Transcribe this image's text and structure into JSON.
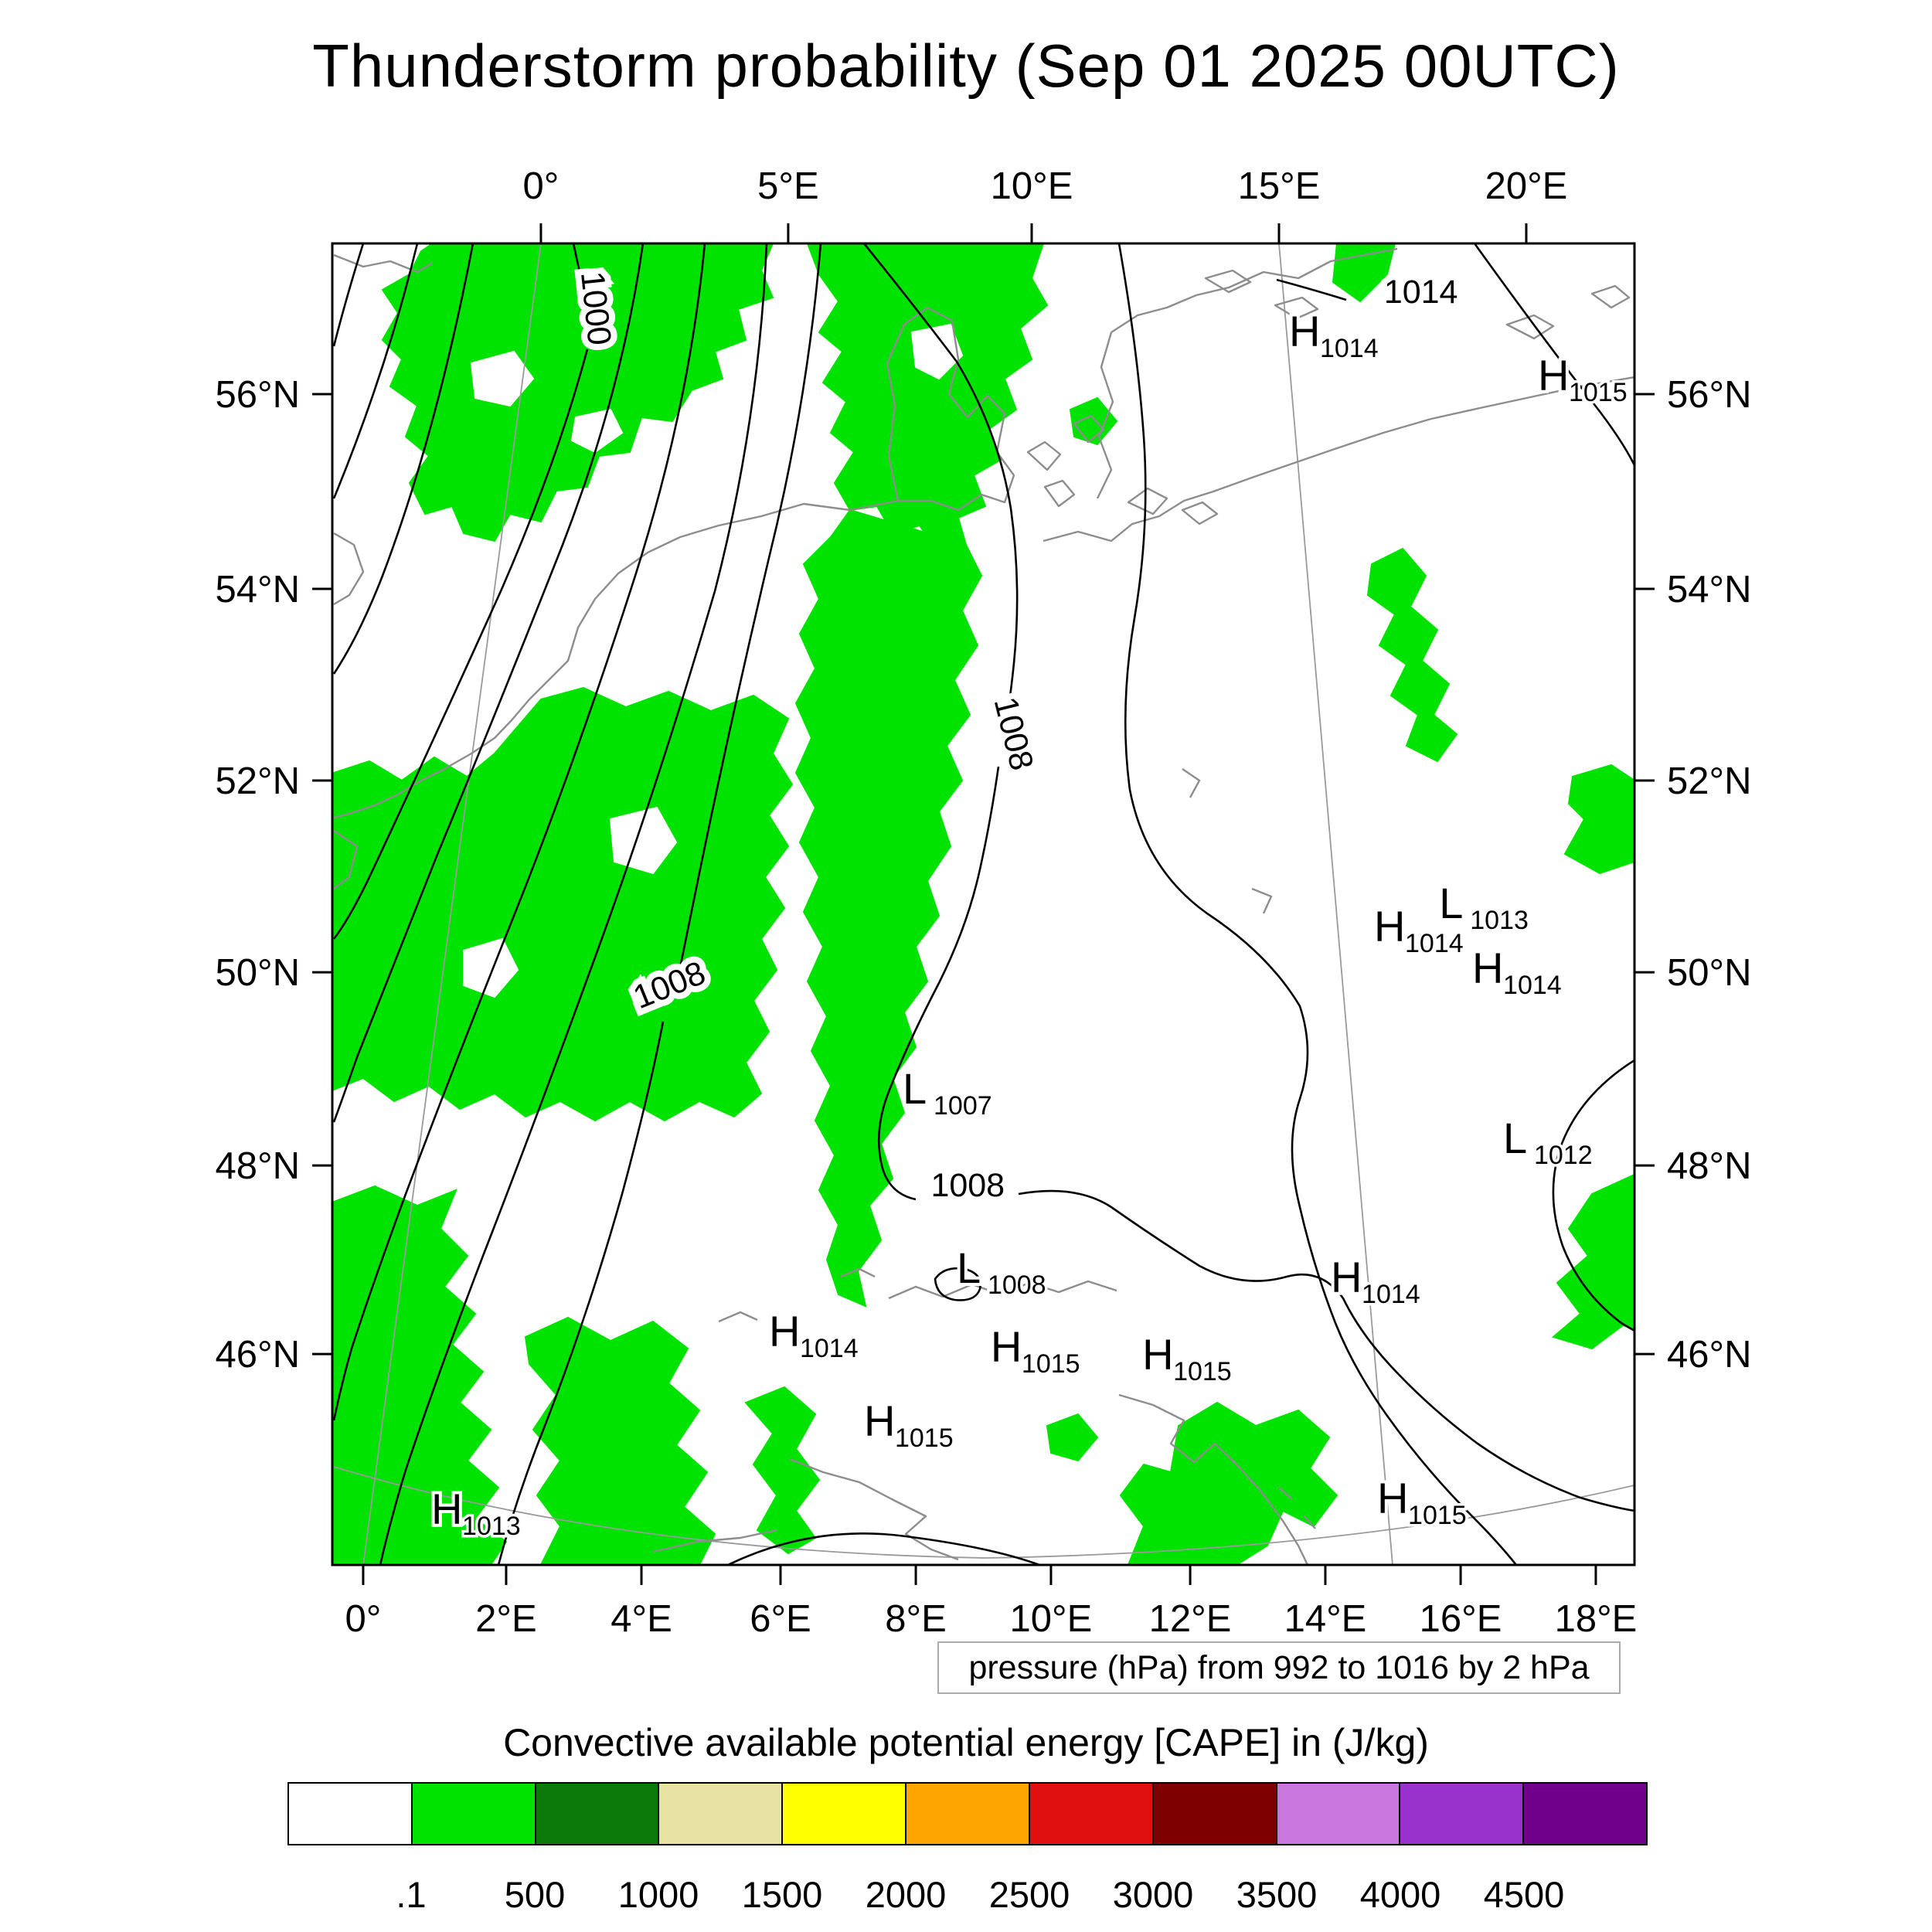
{
  "title": "Thunderstorm probability (Sep 01 2025 00UTC)",
  "map": {
    "axes": {
      "top": [
        {
          "label": "0°",
          "f": 0.1602
        },
        {
          "label": "5°E",
          "f": 0.3501
        },
        {
          "label": "10°E",
          "f": 0.5371
        },
        {
          "label": "15°E",
          "f": 0.727
        },
        {
          "label": "20°E",
          "f": 0.9169
        }
      ],
      "bottom": [
        {
          "label": "0°",
          "f": 0.0237
        },
        {
          "label": "2°E",
          "f": 0.1335
        },
        {
          "label": "4°E",
          "f": 0.2374
        },
        {
          "label": "6°E",
          "f": 0.3442
        },
        {
          "label": "8°E",
          "f": 0.4481
        },
        {
          "label": "10°E",
          "f": 0.5519
        },
        {
          "label": "12°E",
          "f": 0.6588
        },
        {
          "label": "14°E",
          "f": 0.7626
        },
        {
          "label": "16°E",
          "f": 0.8665
        },
        {
          "label": "18°E",
          "f": 0.9703
        }
      ],
      "left": [
        {
          "label": "56°N",
          "f": 0.114
        },
        {
          "label": "54°N",
          "f": 0.2614
        },
        {
          "label": "52°N",
          "f": 0.4064
        },
        {
          "label": "50°N",
          "f": 0.5515
        },
        {
          "label": "48°N",
          "f": 0.6977
        },
        {
          "label": "46°N",
          "f": 0.8404
        }
      ],
      "right": [
        {
          "label": "56°N",
          "f": 0.114
        },
        {
          "label": "54°N",
          "f": 0.2614
        },
        {
          "label": "52°N",
          "f": 0.4064
        },
        {
          "label": "50°N",
          "f": 0.5515
        },
        {
          "label": "48°N",
          "f": 0.6977
        },
        {
          "label": "46°N",
          "f": 0.8404
        }
      ]
    },
    "pressure_centers": [
      {
        "letter": "H",
        "value": "1014",
        "fx": 0.7347,
        "fy": 0.0778
      },
      {
        "letter": "H",
        "value": "1015",
        "fx": 0.9258,
        "fy": 0.1111
      },
      {
        "letter": "H",
        "value": "1014",
        "fx": 0.8,
        "fy": 0.528
      },
      {
        "letter": "L",
        "value": "1013",
        "fx": 0.85,
        "fy": 0.5105
      },
      {
        "letter": "H",
        "value": "1014",
        "fx": 0.8754,
        "fy": 0.5596
      },
      {
        "letter": "L",
        "value": "1007",
        "fx": 0.438,
        "fy": 0.6509
      },
      {
        "letter": "L",
        "value": "1008",
        "fx": 0.4795,
        "fy": 0.7866
      },
      {
        "letter": "H",
        "value": "1014",
        "fx": 0.3353,
        "fy": 0.8345
      },
      {
        "letter": "H",
        "value": "1015",
        "fx": 0.5056,
        "fy": 0.8462
      },
      {
        "letter": "H",
        "value": "1015",
        "fx": 0.622,
        "fy": 0.852
      },
      {
        "letter": "H",
        "value": "1015",
        "fx": 0.4083,
        "fy": 0.9023
      },
      {
        "letter": "H",
        "value": "1014",
        "fx": 0.7668,
        "fy": 0.7936
      },
      {
        "letter": "L",
        "value": "1012",
        "fx": 0.8991,
        "fy": 0.6883
      },
      {
        "letter": "H",
        "value": "1015",
        "fx": 0.8024,
        "fy": 0.9608
      },
      {
        "letter": "H",
        "value": "1013",
        "fx": 0.076,
        "fy": 0.969
      }
    ],
    "contour_labels": [
      {
        "text": "1000",
        "fx": 0.194,
        "fy": 0.05,
        "rot": 84
      },
      {
        "text": "1008",
        "fx": 0.515,
        "fy": 0.373,
        "rot": 76
      },
      {
        "text": "1008",
        "fx": 0.262,
        "fy": 0.569,
        "rot": -22
      },
      {
        "text": "1008",
        "fx": 0.488,
        "fy": 0.721,
        "rot": 0
      },
      {
        "text": "1014",
        "fx": 0.836,
        "fy": 0.045,
        "rot": 0
      }
    ],
    "isobar_values_shown": [
      "1000",
      "1008",
      "1014"
    ]
  },
  "pressure_note": "pressure (hPa) from 992 to 1016 by 2 hPa",
  "cape": {
    "title": "Convective available potential energy [CAPE] in (J/kg)",
    "colors": [
      "#ffffff",
      "#00e200",
      "#0b7a0b",
      "#e8e3a3",
      "#ffff00",
      "#ffa500",
      "#e01010",
      "#7e0000",
      "#c878dc",
      "#9932cc",
      "#70008c"
    ],
    "ticks": [
      ".1",
      "500",
      "1000",
      "1500",
      "2000",
      "2500",
      "3000",
      "3500",
      "4000",
      "4500"
    ]
  }
}
